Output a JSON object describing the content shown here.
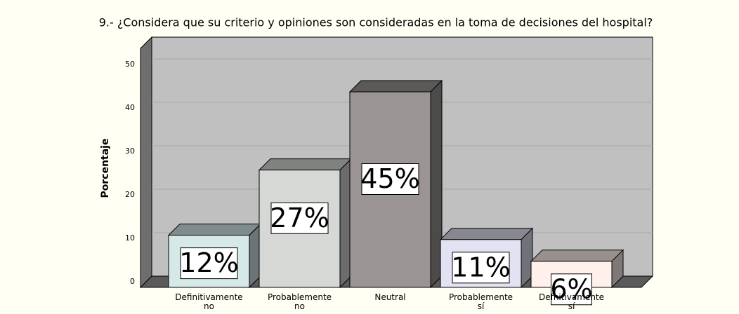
{
  "chart_data": {
    "type": "bar3d",
    "title": "9.- ¿Considera que su criterio y opiniones son consideradas en la toma de decisiones del hospital?",
    "ylabel": "Porcentaje",
    "categories": [
      "Definitivamente no",
      "Probablemente no",
      "Neutral",
      "Probablemente sí",
      "Defnitivamente sí"
    ],
    "values": [
      12,
      27,
      45,
      11,
      6
    ],
    "value_labels": [
      "12%",
      "27%",
      "45%",
      "11%",
      "6%"
    ],
    "colors": [
      "#d6e9e9",
      "#d6d8d6",
      "#9a9594",
      "#e2e2f2",
      "#fff0ec"
    ],
    "ylim": [
      0,
      55
    ],
    "yticks": [
      0,
      10,
      20,
      30,
      40,
      50
    ],
    "grid": true
  }
}
